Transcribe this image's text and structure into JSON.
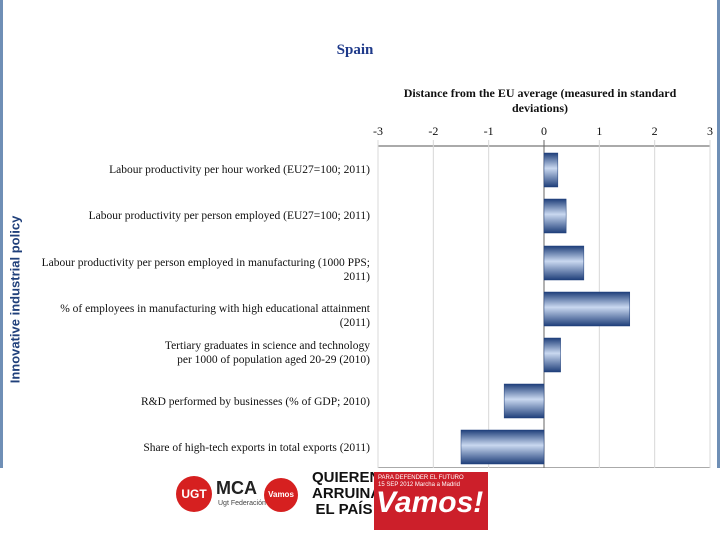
{
  "chart_data": {
    "type": "bar",
    "orientation": "horizontal",
    "title": "Spain",
    "xlabel": "Distance from the EU average (measured in standard deviations)",
    "side_label": "Innovative industrial policy",
    "xlim": [
      -3,
      3
    ],
    "ticks": [
      "-3",
      "-2",
      "-1",
      "0",
      "1",
      "2",
      "3"
    ],
    "grid": true,
    "categories": [
      "Labour productivity per hour worked (EU27=100; 2011)",
      "Labour productivity per person employed (EU27=100; 2011)",
      "Labour productivity per person employed in manufacturing (1000 PPS; 2011)",
      "% of employees in manufacturing with high educational attainment (2011)",
      "Tertiary graduates in science and technology\nper 1000 of population aged 20-29 (2010)",
      "R&D performed by businesses (% of GDP; 2010)",
      "Share of high-tech exports in total exports  (2011)"
    ],
    "values": [
      0.25,
      0.4,
      0.72,
      1.55,
      0.3,
      -0.72,
      -1.5
    ]
  },
  "footer": {
    "ugt": "UGT",
    "mca": "MCA",
    "mca_sub": "Ugt Federación",
    "vamos_small": "Vamos",
    "slogan": "QUIEREN ARRUINAR EL PAÍS",
    "banner_small": "PARA DEFENDER EL FUTURO\n15 SEP 2012  Marcha a Madrid",
    "banner_big": "Vamos!",
    "colors": {
      "red": "#cc1f2a",
      "bar": "#2f5597"
    }
  }
}
